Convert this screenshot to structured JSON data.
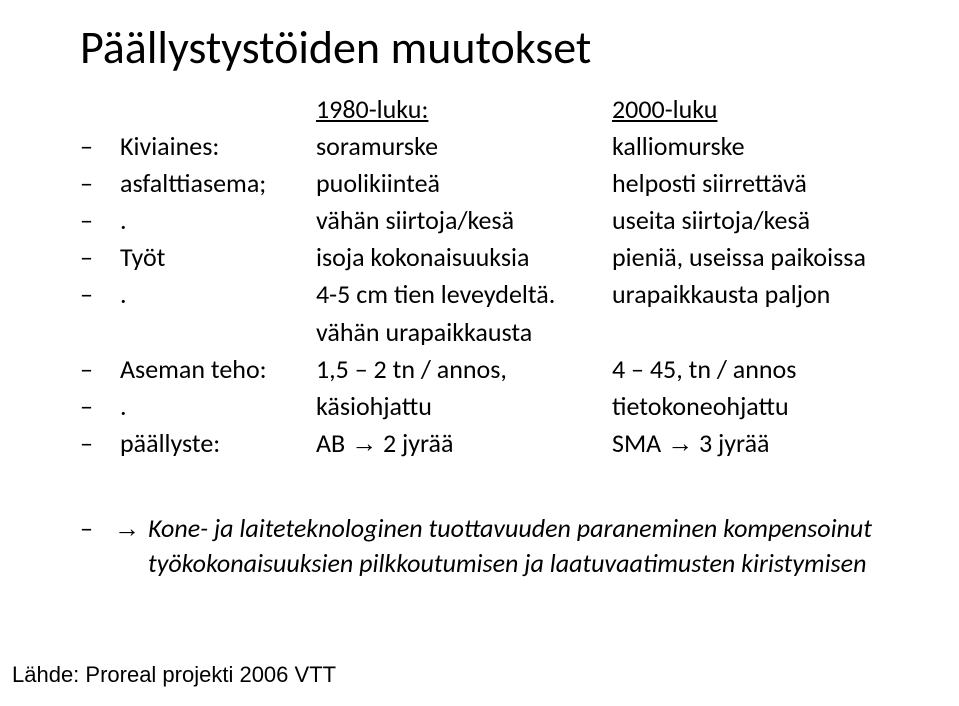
{
  "title": "Päällystystöiden muutokset",
  "dash": "–",
  "dot": ".",
  "header": {
    "left": "1980-luku:",
    "right": "2000-luku"
  },
  "rows": {
    "r1": {
      "label": "Kiviaines:",
      "left": "soramurske",
      "right": "kalliomurske"
    },
    "r2": {
      "label": "asfalttiasema;",
      "left": "puolikiinteä",
      "right": "helposti siirrettävä"
    },
    "r3": {
      "label": "",
      "left": "vähän siirtoja/kesä",
      "right": "useita siirtoja/kesä"
    },
    "r4": {
      "label": "Työt",
      "left": "isoja kokonaisuuksia",
      "right": "pieniä, useissa paikoissa"
    },
    "r5": {
      "label": "",
      "left": "4-5 cm tien leveydeltä.",
      "right": "urapaikkausta paljon"
    },
    "r5b": {
      "left": "vähän urapaikkausta"
    },
    "r6": {
      "label": "Aseman teho:",
      "left": "1,5 – 2 tn / annos,",
      "right": "4 – 45, tn / annos"
    },
    "r7": {
      "label": "",
      "left": "käsiohjattu",
      "right": "tietokoneohjattu"
    },
    "r8": {
      "label": "päällyste:",
      "left_a": "AB ",
      "left_arrow": "→",
      "left_b": " 2 jyrää",
      "right_a": "SMA ",
      "right_arrow": "→",
      "right_b": " 3 jyrää"
    }
  },
  "conclusion": {
    "arrow": "→",
    "line1": "Kone- ja laiteteknologinen tuottavuuden paraneminen kompensoinut",
    "line2": "työkokonaisuuksien pilkkoutumisen ja laatuvaatimusten kiristymisen"
  },
  "source": "Lähde: Proreal projekti 2006 VTT"
}
